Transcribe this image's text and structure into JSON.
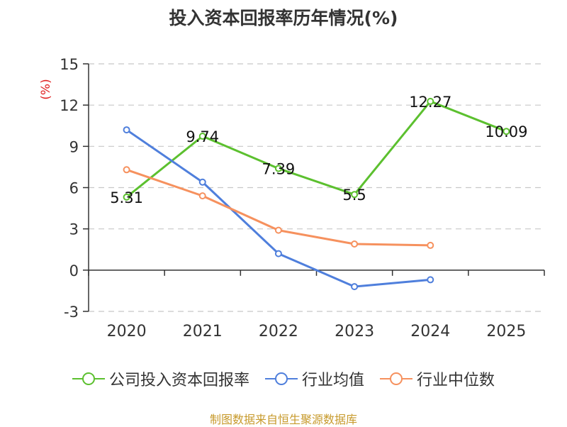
{
  "title": "投入资本回报率历年情况(%)",
  "source": "制图数据来自恒生聚源数据库",
  "colors": {
    "company": "#5cc02f",
    "industry_avg": "#4f7fdc",
    "industry_median": "#f6915e",
    "grid": "#c8c8c8",
    "axis": "#333333",
    "ylabel": "#e02020"
  },
  "chart_data": {
    "type": "line",
    "title": "投入资本回报率历年情况(%)",
    "xlabel": "",
    "ylabel": "(%)",
    "categories": [
      "2020",
      "2021",
      "2022",
      "2023",
      "2024",
      "2025"
    ],
    "ylim": [
      -3,
      15
    ],
    "yticks": [
      -3,
      0,
      3,
      6,
      9,
      12,
      15
    ],
    "grid": true,
    "legend_position": "bottom",
    "series": [
      {
        "name": "公司投入资本回报率",
        "values": [
          5.31,
          9.74,
          7.39,
          5.5,
          12.27,
          10.09
        ],
        "labels": [
          "5.31",
          "9.74",
          "7.39",
          "5.5",
          "12.27",
          "10.09"
        ]
      },
      {
        "name": "行业均值",
        "values": [
          10.2,
          6.4,
          1.2,
          -1.2,
          -0.7,
          null
        ]
      },
      {
        "name": "行业中位数",
        "values": [
          7.3,
          5.4,
          2.9,
          1.9,
          1.8,
          null
        ]
      }
    ]
  }
}
